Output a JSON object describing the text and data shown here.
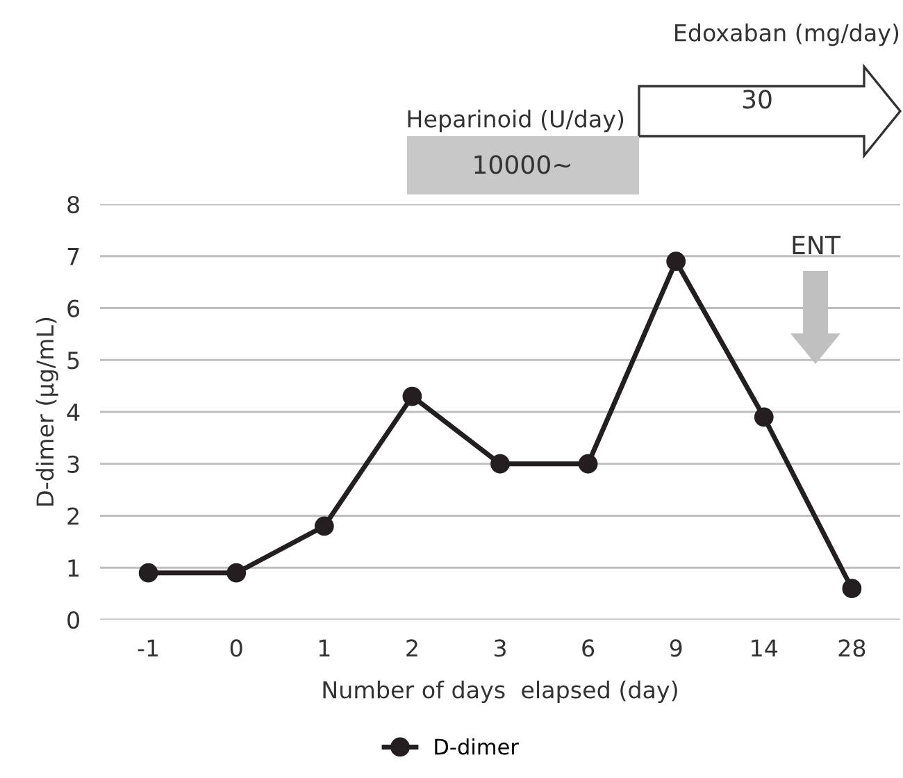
{
  "chart_data": {
    "type": "line",
    "categories": [
      "-1",
      "0",
      "1",
      "2",
      "3",
      "6",
      "9",
      "14",
      "28"
    ],
    "series": [
      {
        "name": "D-dimer",
        "color": "#231f20",
        "values": [
          0.9,
          0.9,
          1.8,
          4.3,
          3.0,
          3.0,
          6.9,
          3.9,
          0.6
        ]
      }
    ],
    "xlabel": "Number of days  elapsed (day)",
    "ylabel": "D-dimer (μg/mL)",
    "ylim": [
      0,
      8
    ],
    "yticks": [
      0,
      1,
      2,
      3,
      4,
      5,
      6,
      7,
      8
    ],
    "grid": "y",
    "legend": "bottom",
    "marker": "circle",
    "line_style": "solid",
    "annotations": [
      "Edoxaban (mg/day)",
      "30",
      "Heparinoid (U/day)",
      "10000~",
      "ENT"
    ]
  }
}
